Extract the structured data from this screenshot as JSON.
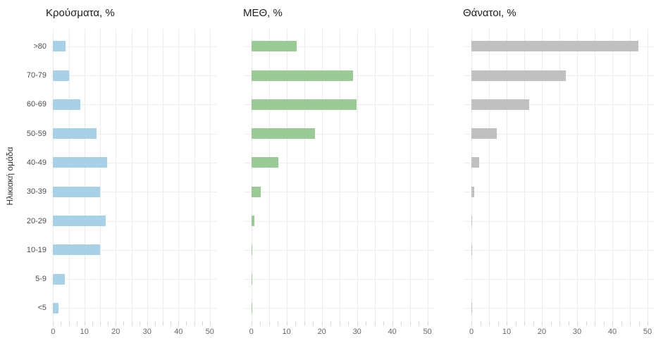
{
  "figure": {
    "ylabel": "Ηλικιακή ομάδα",
    "background_color": "#ffffff",
    "grid_color": "#ebebeb",
    "text_color": "#4d4d4d"
  },
  "chart_data": [
    {
      "type": "bar",
      "orientation": "horizontal",
      "title": "Κρούσματα, %",
      "ylabel": "Ηλικιακή ομάδα",
      "categories": [
        ">80",
        "70-79",
        "60-69",
        "50-59",
        "40-49",
        "30-39",
        "20-29",
        "10-19",
        "5-9",
        "<5"
      ],
      "values": [
        4.0,
        5.0,
        8.7,
        13.8,
        17.2,
        15.1,
        16.7,
        15.1,
        3.8,
        1.8
      ],
      "color": "#a7d1e8",
      "xlim": [
        0,
        53
      ],
      "xticks": [
        0,
        10,
        20,
        30,
        40,
        50
      ],
      "grid": true,
      "legend": false
    },
    {
      "type": "bar",
      "orientation": "horizontal",
      "title": "ΜΕΘ, %",
      "categories": [
        ">80",
        "70-79",
        "60-69",
        "50-59",
        "40-49",
        "30-39",
        "20-29",
        "10-19",
        "5-9",
        "<5"
      ],
      "values": [
        12.9,
        28.9,
        29.9,
        18.0,
        7.7,
        2.7,
        0.8,
        0.2,
        0.15,
        0.15
      ],
      "color": "#9bcb95",
      "xlim": [
        0,
        53
      ],
      "xticks": [
        0,
        10,
        20,
        30,
        40,
        50
      ],
      "grid": true,
      "legend": false
    },
    {
      "type": "bar",
      "orientation": "horizontal",
      "title": "Θάνατοι, %",
      "categories": [
        ">80",
        "70-79",
        "60-69",
        "50-59",
        "40-49",
        "30-39",
        "20-29",
        "10-19",
        "5-9",
        "<5"
      ],
      "values": [
        47.3,
        26.8,
        16.4,
        7.1,
        2.1,
        0.8,
        0.2,
        0.15,
        0,
        0.1
      ],
      "color": "#c0c0c0",
      "xlim": [
        0,
        53
      ],
      "xticks": [
        0,
        10,
        20,
        30,
        40,
        50
      ],
      "grid": true,
      "legend": false
    }
  ]
}
